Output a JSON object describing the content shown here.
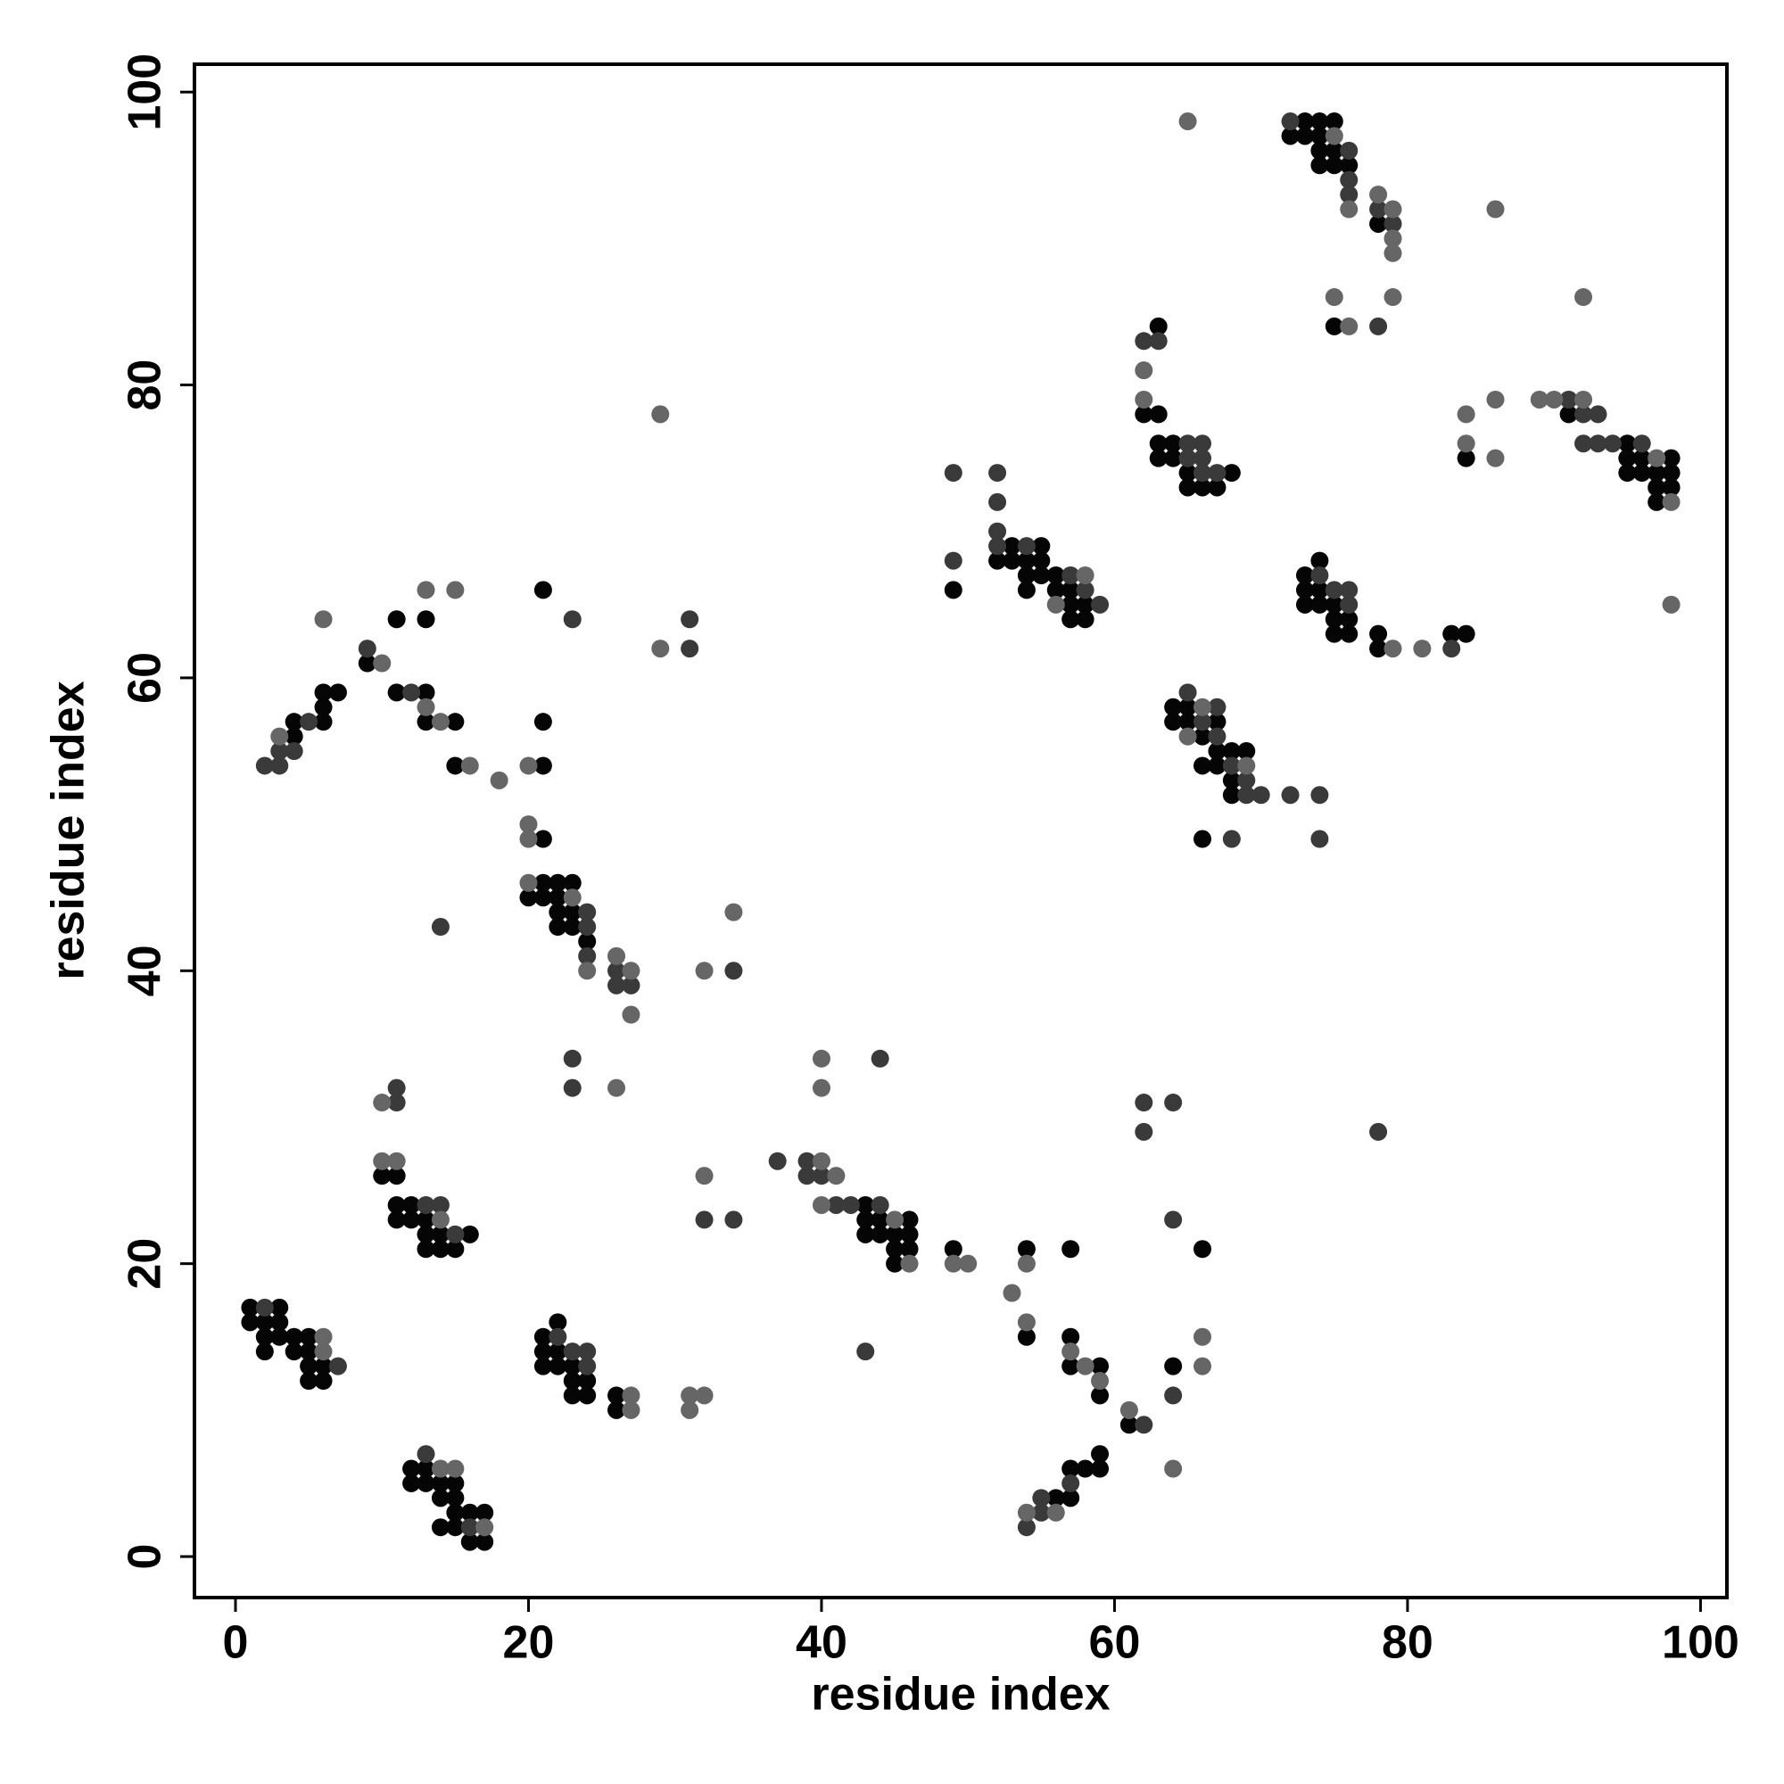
{
  "chart_data": {
    "type": "scatter",
    "xlabel": "residue index",
    "ylabel": "residue index",
    "xlim": [
      -2.8,
      101.8
    ],
    "ylim": [
      -2.8,
      101.9
    ],
    "xticks": [
      0,
      20,
      40,
      60,
      80,
      100
    ],
    "yticks": [
      0,
      20,
      40,
      60,
      80,
      100
    ],
    "series": [
      {
        "color": "#050505",
        "x": [
          1,
          3,
          1,
          2,
          3,
          2,
          3,
          4,
          5,
          2,
          4,
          5,
          5,
          6,
          5,
          6,
          12,
          13,
          12,
          13,
          14,
          15,
          14,
          15,
          15,
          16,
          17,
          14,
          15,
          16,
          17,
          10,
          11,
          11,
          12,
          11,
          12,
          13,
          13,
          14,
          16,
          13,
          14,
          15,
          22,
          21,
          21,
          22,
          21,
          22,
          23,
          23,
          24,
          23,
          24,
          26,
          26,
          21,
          21,
          22,
          23,
          20,
          21,
          22,
          22,
          23,
          22,
          23,
          24,
          4,
          4,
          6,
          6,
          6,
          7,
          9,
          11,
          13,
          13,
          15,
          15,
          11,
          13,
          21,
          21,
          21,
          43,
          43,
          44,
          46,
          43,
          44,
          45,
          46,
          45,
          46,
          45,
          49,
          54,
          54,
          57,
          57,
          57,
          59,
          59,
          61,
          59,
          57,
          58,
          59,
          56,
          57,
          64,
          66,
          49,
          53,
          55,
          52,
          53,
          54,
          55,
          54,
          55,
          56,
          54,
          56,
          57,
          57,
          58,
          57,
          58,
          63,
          62,
          63,
          63,
          64,
          63,
          64,
          65,
          68,
          65,
          66,
          67,
          64,
          65,
          64,
          65,
          67,
          66,
          67,
          68,
          69,
          66,
          67,
          68,
          68,
          66,
          73,
          74,
          73,
          74,
          73,
          74,
          75,
          75,
          76,
          75,
          76,
          78,
          78,
          83,
          84,
          73,
          74,
          75,
          72,
          73,
          74,
          74,
          75,
          74,
          75,
          76,
          78,
          75,
          84,
          91,
          95,
          95,
          96,
          98,
          95,
          96,
          97,
          98,
          97,
          98,
          97
        ],
        "values": [
          17,
          17,
          16,
          16,
          16,
          15,
          15,
          15,
          15,
          14,
          14,
          14,
          13,
          13,
          12,
          12,
          6,
          6,
          5,
          5,
          5,
          5,
          4,
          4,
          3,
          3,
          3,
          2,
          2,
          1,
          1,
          26,
          26,
          24,
          24,
          23,
          23,
          23,
          22,
          22,
          22,
          21,
          21,
          21,
          16,
          15,
          14,
          14,
          13,
          13,
          13,
          12,
          12,
          11,
          11,
          11,
          10,
          49,
          46,
          46,
          46,
          45,
          45,
          45,
          44,
          44,
          43,
          43,
          42,
          56,
          57,
          57,
          58,
          59,
          59,
          61,
          59,
          59,
          57,
          57,
          54,
          64,
          64,
          54,
          57,
          66,
          24,
          23,
          23,
          23,
          22,
          22,
          22,
          22,
          21,
          21,
          20,
          21,
          21,
          15,
          21,
          15,
          13,
          13,
          11,
          9,
          7,
          6,
          6,
          6,
          4,
          4,
          13,
          21,
          66,
          69,
          69,
          68,
          68,
          68,
          68,
          67,
          67,
          67,
          66,
          66,
          66,
          65,
          65,
          64,
          64,
          84,
          78,
          78,
          76,
          76,
          75,
          75,
          74,
          74,
          73,
          73,
          73,
          58,
          58,
          57,
          57,
          57,
          56,
          55,
          55,
          55,
          54,
          54,
          53,
          52,
          49,
          67,
          68,
          66,
          66,
          65,
          65,
          65,
          64,
          64,
          63,
          63,
          63,
          62,
          63,
          63,
          98,
          98,
          98,
          97,
          97,
          97,
          96,
          96,
          95,
          95,
          95,
          91,
          84,
          75,
          78,
          76,
          75,
          75,
          75,
          74,
          74,
          74,
          74,
          73,
          73,
          72
        ]
      },
      {
        "color": "#3a3a3a",
        "x": [
          2,
          7,
          13,
          16,
          13,
          14,
          15,
          11,
          11,
          22,
          23,
          24,
          24,
          24,
          24,
          24,
          26,
          26,
          27,
          14,
          34,
          23,
          23,
          32,
          34,
          2,
          3,
          3,
          4,
          5,
          9,
          12,
          23,
          31,
          31,
          37,
          39,
          39,
          40,
          41,
          42,
          44,
          44,
          43,
          62,
          57,
          55,
          55,
          54,
          64,
          64,
          62,
          64,
          62,
          78,
          49,
          52,
          52,
          49,
          52,
          52,
          54,
          57,
          58,
          59,
          62,
          63,
          65,
          66,
          65,
          66,
          66,
          67,
          65,
          67,
          66,
          67,
          68,
          69,
          69,
          70,
          72,
          74,
          68,
          74,
          74,
          75,
          76,
          76,
          83,
          72,
          76,
          76,
          76,
          78,
          79,
          78,
          91,
          92,
          93,
          92,
          93,
          94,
          96
        ],
        "values": [
          17,
          13,
          7,
          2,
          24,
          24,
          22,
          31,
          32,
          15,
          14,
          14,
          13,
          44,
          43,
          41,
          40,
          39,
          39,
          43,
          40,
          34,
          32,
          23,
          23,
          54,
          54,
          55,
          55,
          57,
          62,
          59,
          64,
          62,
          64,
          27,
          27,
          26,
          26,
          24,
          24,
          24,
          34,
          14,
          9,
          5,
          4,
          3,
          2,
          11,
          23,
          31,
          31,
          29,
          29,
          74,
          74,
          72,
          68,
          70,
          69,
          69,
          67,
          66,
          65,
          83,
          83,
          76,
          76,
          75,
          75,
          74,
          74,
          59,
          58,
          57,
          56,
          54,
          53,
          52,
          52,
          52,
          52,
          49,
          49,
          67,
          66,
          66,
          65,
          62,
          98,
          96,
          94,
          93,
          92,
          91,
          84,
          79,
          78,
          78,
          76,
          76,
          76,
          76
        ]
      },
      {
        "color": "#666666",
        "x": [
          6,
          6,
          14,
          15,
          17,
          10,
          11,
          14,
          10,
          27,
          27,
          31,
          32,
          31,
          20,
          20,
          20,
          23,
          26,
          27,
          24,
          27,
          32,
          34,
          26,
          32,
          3,
          6,
          10,
          13,
          14,
          16,
          18,
          13,
          15,
          20,
          29,
          29,
          40,
          41,
          40,
          45,
          46,
          49,
          50,
          40,
          40,
          54,
          53,
          54,
          57,
          58,
          59,
          61,
          54,
          56,
          64,
          66,
          66,
          58,
          56,
          62,
          62,
          66,
          65,
          69,
          79,
          81,
          65,
          75,
          76,
          78,
          79,
          79,
          79,
          75,
          79,
          76,
          86,
          84,
          84,
          86,
          86,
          89,
          90,
          92,
          97,
          98,
          98,
          92
        ],
        "values": [
          15,
          14,
          6,
          6,
          2,
          27,
          27,
          23,
          31,
          11,
          10,
          11,
          11,
          10,
          50,
          49,
          46,
          45,
          41,
          40,
          40,
          37,
          40,
          44,
          32,
          26,
          56,
          64,
          61,
          58,
          57,
          54,
          53,
          66,
          66,
          54,
          62,
          78,
          27,
          26,
          24,
          23,
          20,
          20,
          20,
          34,
          32,
          20,
          18,
          16,
          14,
          13,
          12,
          10,
          3,
          3,
          6,
          15,
          13,
          67,
          65,
          81,
          79,
          58,
          56,
          54,
          62,
          62,
          98,
          97,
          92,
          93,
          92,
          90,
          89,
          86,
          86,
          84,
          92,
          78,
          76,
          79,
          75,
          79,
          79,
          79,
          75,
          72,
          65,
          86
        ]
      }
    ]
  }
}
